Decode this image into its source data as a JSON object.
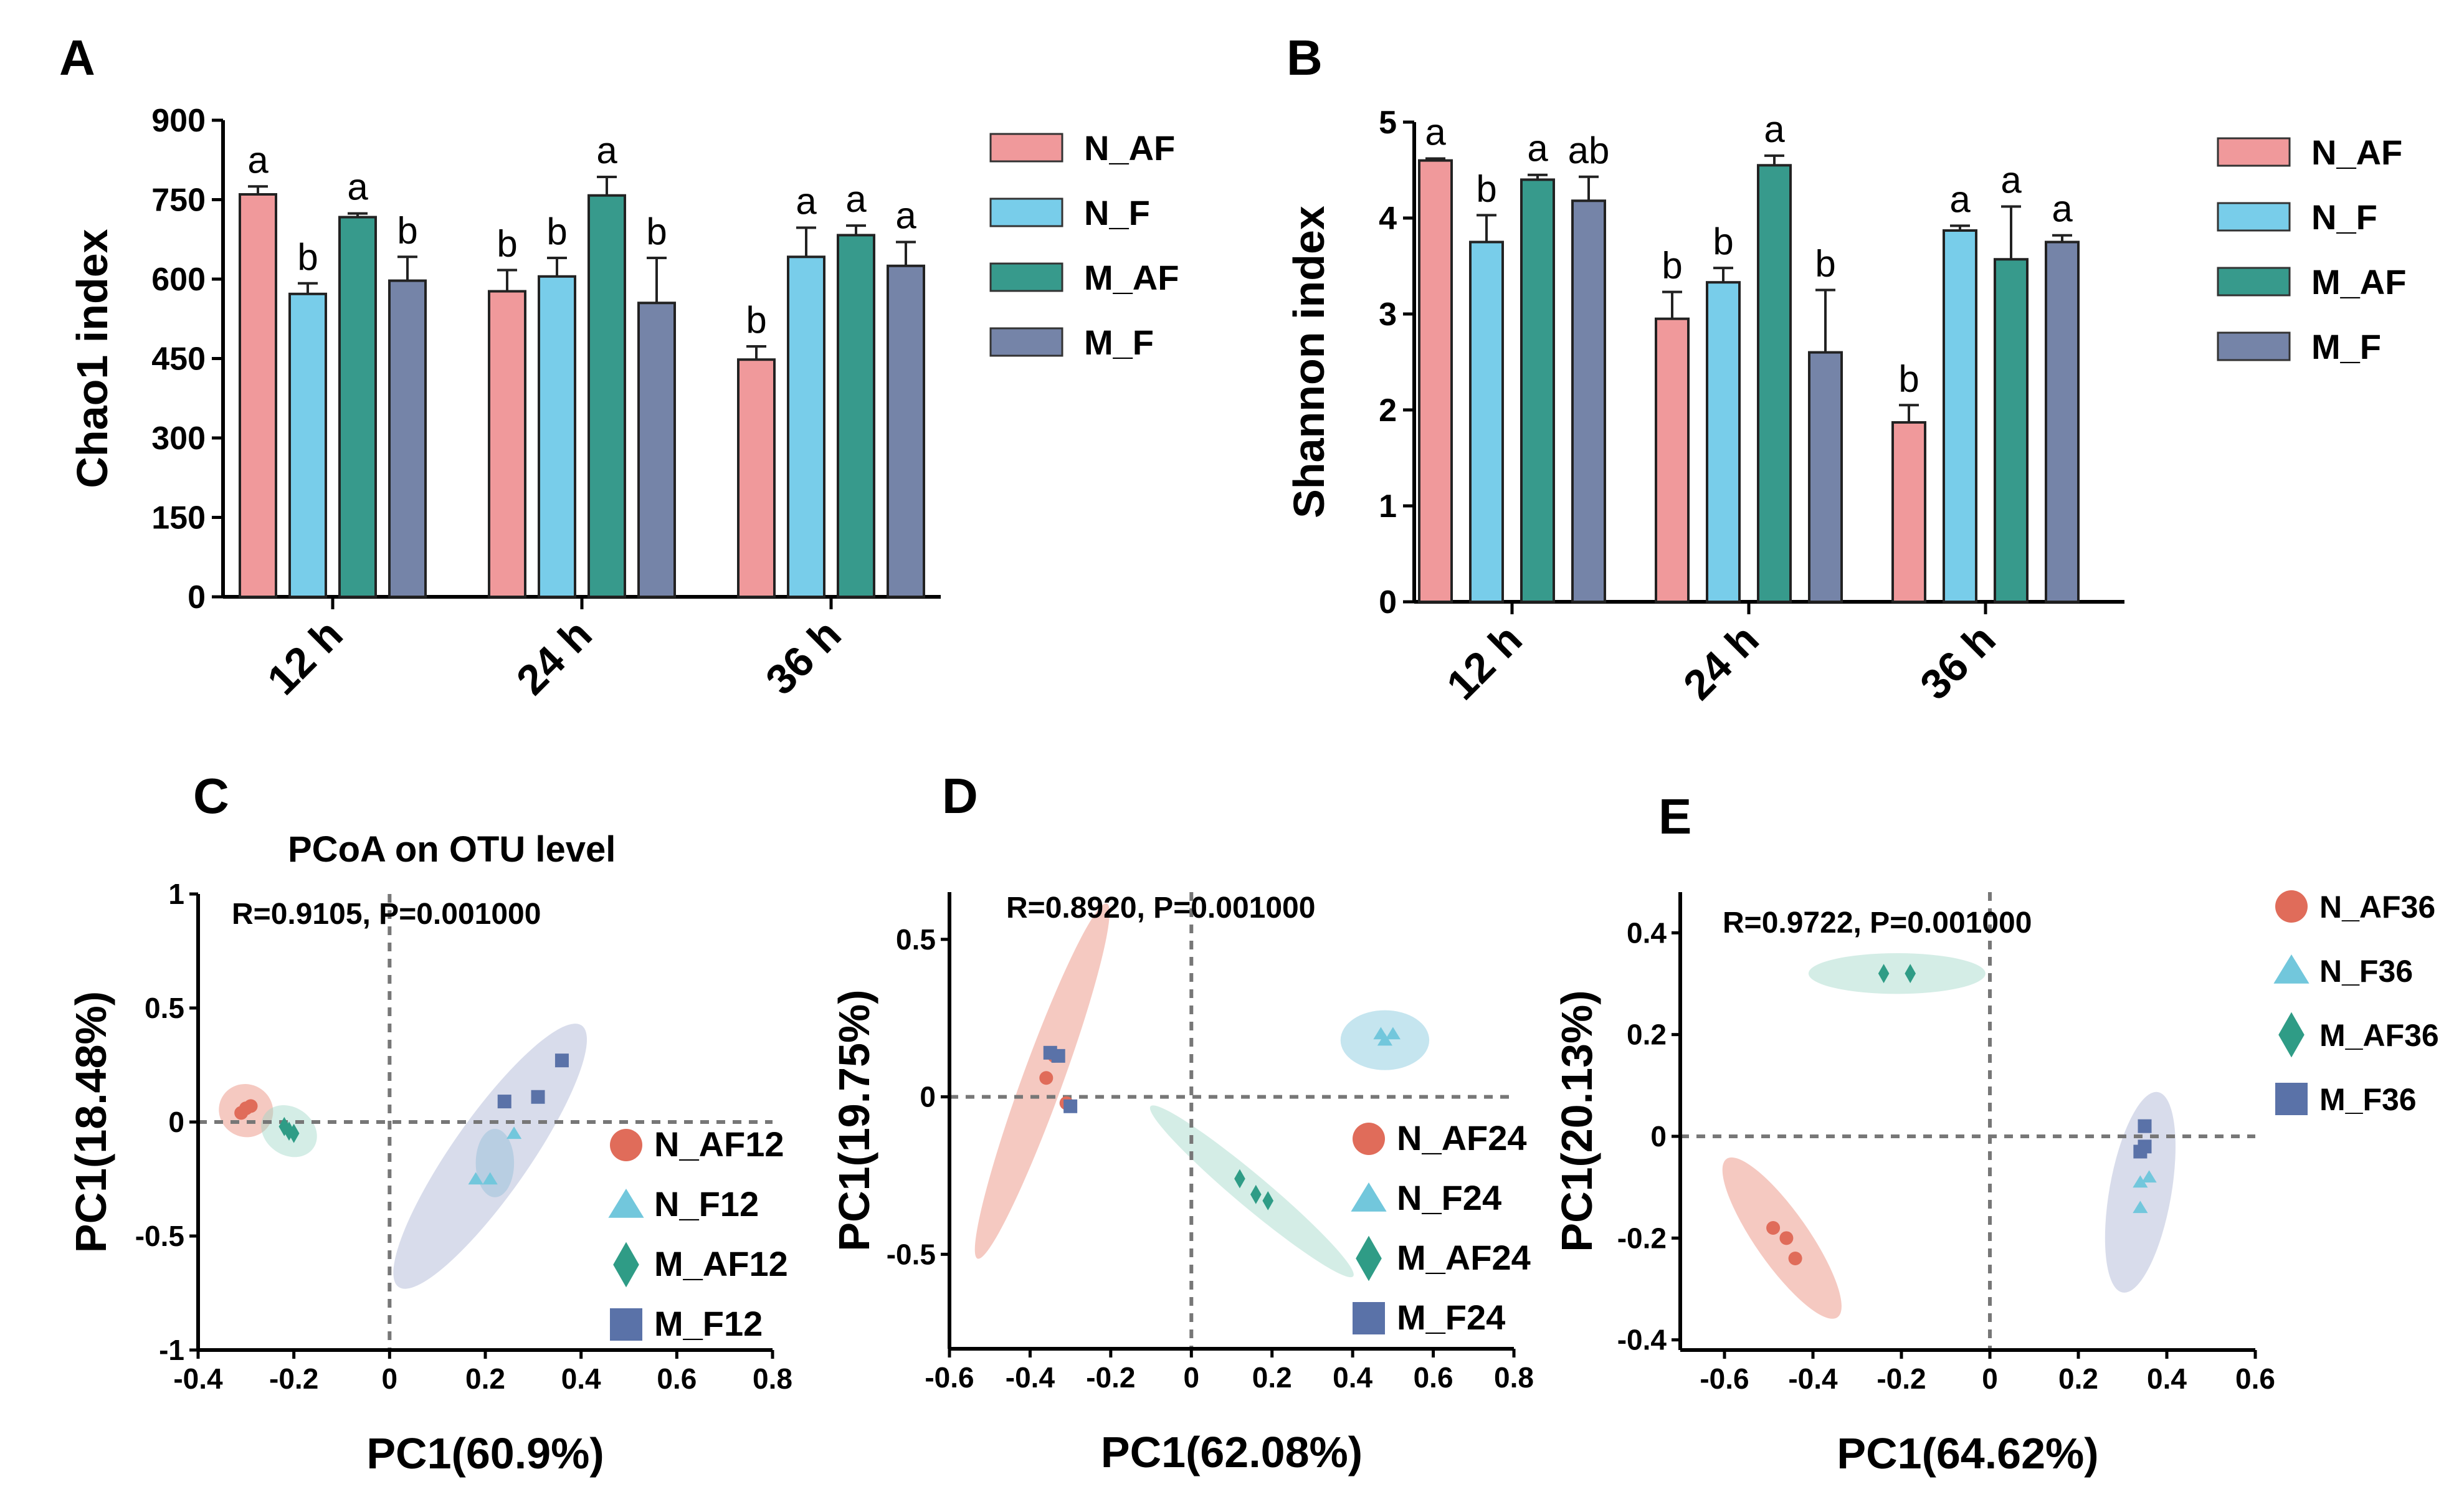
{
  "colors": {
    "N_AF": "#f0999b",
    "N_F": "#78cdea",
    "M_AF": "#379a8c",
    "M_F": "#7584a8"
  },
  "pcoa_colors": {
    "N_AF": {
      "point": "#e06c5a",
      "ellipse": "#e98776"
    },
    "N_F": {
      "point": "#72c7dc",
      "ellipse": "#7ec6dc"
    },
    "M_AF": {
      "point": "#2f9c86",
      "ellipse": "#9fd7c8"
    },
    "M_F": {
      "point": "#5a72a8",
      "ellipse": "#a8b2d2"
    }
  },
  "chart_data": [
    {
      "panel": "A",
      "type": "bar",
      "ylabel": "Chao1 index",
      "ylim": [
        0,
        900
      ],
      "yticks": [
        0,
        150,
        300,
        450,
        600,
        750,
        900
      ],
      "categories": [
        "12 h",
        "24 h",
        "36 h"
      ],
      "series": [
        {
          "name": "N_AF",
          "values": [
            760,
            577,
            448
          ],
          "errors": [
            15,
            40,
            25
          ],
          "letters": [
            "a",
            "b",
            "b"
          ]
        },
        {
          "name": "N_F",
          "values": [
            572,
            605,
            642
          ],
          "errors": [
            20,
            35,
            55
          ],
          "letters": [
            "b",
            "b",
            "a"
          ]
        },
        {
          "name": "M_AF",
          "values": [
            717,
            758,
            683
          ],
          "errors": [
            7,
            35,
            18
          ],
          "letters": [
            "a",
            "a",
            "a"
          ]
        },
        {
          "name": "M_F",
          "values": [
            597,
            555,
            625
          ],
          "errors": [
            45,
            85,
            45
          ],
          "letters": [
            "b",
            "b",
            "a"
          ]
        }
      ]
    },
    {
      "panel": "B",
      "type": "bar",
      "ylabel": "Shannon index",
      "ylim": [
        0,
        5
      ],
      "yticks": [
        0,
        1,
        2,
        3,
        4,
        5
      ],
      "categories": [
        "12 h",
        "24 h",
        "36 h"
      ],
      "series": [
        {
          "name": "N_AF",
          "values": [
            4.6,
            2.95,
            1.87
          ],
          "errors": [
            0.02,
            0.28,
            0.18
          ],
          "letters": [
            "a",
            "b",
            "b"
          ]
        },
        {
          "name": "N_F",
          "values": [
            3.75,
            3.33,
            3.87
          ],
          "errors": [
            0.28,
            0.15,
            0.05
          ],
          "letters": [
            "b",
            "b",
            "a"
          ]
        },
        {
          "name": "M_AF",
          "values": [
            4.4,
            4.55,
            3.57
          ],
          "errors": [
            0.05,
            0.1,
            0.55
          ],
          "letters": [
            "a",
            "a",
            "a"
          ]
        },
        {
          "name": "M_F",
          "values": [
            4.18,
            2.6,
            3.75
          ],
          "errors": [
            0.25,
            0.65,
            0.07
          ],
          "letters": [
            "ab",
            "b",
            "a"
          ]
        }
      ]
    },
    {
      "panel": "C",
      "type": "scatter",
      "title": "PCoA on OTU level",
      "stat": "R=0.9105, P=0.001000",
      "xlabel": "PC1(60.9%)",
      "ylabel": "PC1(18.48%)",
      "xlim": [
        -0.4,
        0.8
      ],
      "ylim": [
        -1,
        1
      ],
      "xticks": [
        -0.4,
        -0.2,
        0,
        0.2,
        0.4,
        0.6,
        0.8
      ],
      "yticks": [
        -1,
        -0.5,
        0,
        0.5,
        1
      ],
      "series": [
        {
          "name": "N_AF12",
          "group": "N_AF",
          "points": [
            [
              -0.31,
              0.04
            ],
            [
              -0.3,
              0.06
            ],
            [
              -0.29,
              0.07
            ]
          ],
          "ellipse": {
            "cx": -0.3,
            "cy": 0.05,
            "rx": 0.055,
            "ry": 0.12,
            "angle": -60
          }
        },
        {
          "name": "N_F12",
          "group": "N_F",
          "points": [
            [
              0.18,
              -0.25
            ],
            [
              0.21,
              -0.25
            ],
            [
              0.26,
              -0.05
            ]
          ],
          "ellipse": {
            "cx": 0.22,
            "cy": -0.18,
            "rx": 0.04,
            "ry": 0.15,
            "angle": 0
          }
        },
        {
          "name": "M_AF12",
          "group": "M_AF",
          "points": [
            [
              -0.22,
              -0.02
            ],
            [
              -0.21,
              -0.04
            ],
            [
              -0.2,
              -0.05
            ]
          ],
          "ellipse": {
            "cx": -0.21,
            "cy": -0.04,
            "rx": 0.05,
            "ry": 0.13,
            "angle": -55
          }
        },
        {
          "name": "M_F12",
          "group": "M_F",
          "points": [
            [
              0.24,
              0.09
            ],
            [
              0.31,
              0.11
            ],
            [
              0.36,
              0.27
            ]
          ],
          "ellipse": {
            "cx": 0.21,
            "cy": -0.15,
            "rx": 0.08,
            "ry": 0.7,
            "angle": 35
          }
        }
      ]
    },
    {
      "panel": "D",
      "type": "scatter",
      "stat": "R=0.8920, P=0.001000",
      "xlabel": "PC1(62.08%)",
      "ylabel": "PC1(19.75%)",
      "xlim": [
        -0.6,
        0.8
      ],
      "ylim": [
        -0.8,
        0.65
      ],
      "xticks": [
        -0.6,
        -0.4,
        -0.2,
        0,
        0.2,
        0.4,
        0.6,
        0.8
      ],
      "yticks": [
        -0.5,
        0,
        0.5
      ],
      "series": [
        {
          "name": "N_AF24",
          "group": "N_AF",
          "points": [
            [
              -0.36,
              0.06
            ],
            [
              -0.34,
              0.13
            ],
            [
              -0.31,
              -0.02
            ]
          ],
          "ellipse": {
            "cx": -0.37,
            "cy": 0.05,
            "rx": 0.05,
            "ry": 0.6,
            "angle": 20
          }
        },
        {
          "name": "N_F24",
          "group": "N_F",
          "points": [
            [
              0.47,
              0.2
            ],
            [
              0.5,
              0.2
            ],
            [
              0.48,
              0.18
            ]
          ],
          "ellipse": {
            "cx": 0.48,
            "cy": 0.18,
            "rx": 0.11,
            "ry": 0.095,
            "angle": 0
          }
        },
        {
          "name": "M_AF24",
          "group": "M_AF",
          "points": [
            [
              0.12,
              -0.26
            ],
            [
              0.16,
              -0.31
            ],
            [
              0.19,
              -0.33
            ]
          ],
          "ellipse": {
            "cx": 0.15,
            "cy": -0.3,
            "rx": 0.04,
            "ry": 0.42,
            "angle": -50
          }
        },
        {
          "name": "M_F24",
          "group": "M_F",
          "points": [
            [
              -0.35,
              0.14
            ],
            [
              -0.33,
              0.13
            ],
            [
              -0.3,
              -0.03
            ]
          ],
          "ellipse": null
        }
      ]
    },
    {
      "panel": "E",
      "type": "scatter",
      "stat": "R=0.9722, P=0.001000",
      "xlabel": "PC1(64.62%)",
      "ylabel": "PC1(20.13%)",
      "xlim": [
        -0.7,
        0.6
      ],
      "ylim": [
        -0.42,
        0.48
      ],
      "xticks": [
        -0.6,
        -0.4,
        -0.2,
        0,
        0.2,
        0.4,
        0.6
      ],
      "yticks": [
        -0.4,
        -0.2,
        0,
        0.2,
        0.4
      ],
      "series": [
        {
          "name": "N_AF36",
          "group": "N_AF",
          "points": [
            [
              -0.49,
              -0.18
            ],
            [
              -0.46,
              -0.2
            ],
            [
              -0.44,
              -0.24
            ]
          ],
          "ellipse": {
            "cx": -0.47,
            "cy": -0.2,
            "rx": 0.06,
            "ry": 0.19,
            "angle": -35
          }
        },
        {
          "name": "N_F36",
          "group": "N_F",
          "points": [
            [
              0.34,
              -0.09
            ],
            [
              0.36,
              -0.08
            ],
            [
              0.34,
              -0.14
            ]
          ],
          "ellipse": null
        },
        {
          "name": "M_AF36",
          "group": "M_AF",
          "points": [
            [
              -0.24,
              0.32
            ],
            [
              -0.18,
              0.32
            ]
          ],
          "ellipse": {
            "cx": -0.21,
            "cy": 0.32,
            "rx": 0.2,
            "ry": 0.04,
            "angle": 0
          }
        },
        {
          "name": "M_F36",
          "group": "M_F",
          "points": [
            [
              0.35,
              0.02
            ],
            [
              0.35,
              -0.02
            ],
            [
              0.34,
              -0.03
            ]
          ],
          "ellipse": {
            "cx": 0.34,
            "cy": -0.11,
            "rx": 0.07,
            "ry": 0.2,
            "angle": 10
          }
        }
      ]
    }
  ]
}
